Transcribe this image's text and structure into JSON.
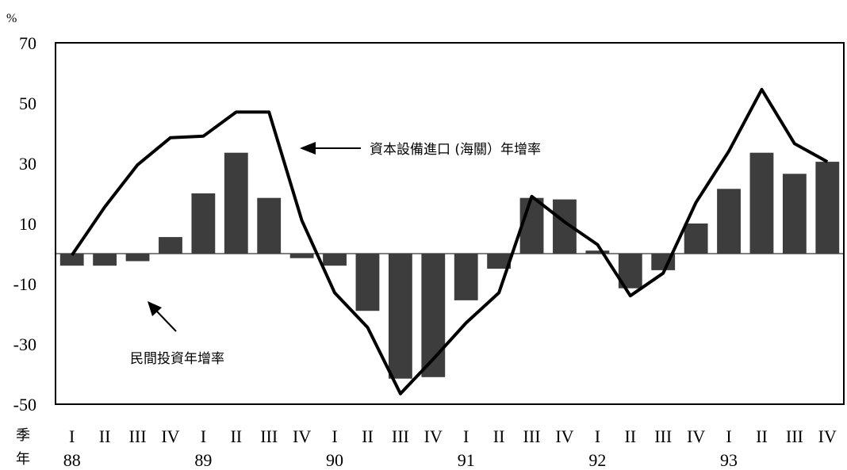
{
  "chart_data": {
    "type": "bar",
    "unit_label": "%",
    "ylim": [
      -50,
      70
    ],
    "y_ticks": [
      "70",
      "50",
      "30",
      "10",
      "-10",
      "-30",
      "-50"
    ],
    "quarter_row_label": "季",
    "year_row_label": "年",
    "quarters": [
      "I",
      "II",
      "III",
      "IV",
      "I",
      "II",
      "III",
      "IV",
      "I",
      "II",
      "III",
      "IV",
      "I",
      "II",
      "III",
      "IV",
      "I",
      "II",
      "III",
      "IV",
      "I",
      "II",
      "III",
      "IV"
    ],
    "years": [
      "88",
      "89",
      "90",
      "91",
      "92",
      "93"
    ],
    "series": [
      {
        "name": "民間投資年增率",
        "type": "bar",
        "values": [
          -4,
          -4,
          -2.5,
          5.5,
          20,
          33.5,
          18.5,
          -1.5,
          -4,
          -19,
          -41.5,
          -41,
          -15.5,
          -5,
          18.5,
          18,
          1,
          -11.5,
          -5.5,
          10,
          21.5,
          33.5,
          26.5,
          30.5
        ]
      },
      {
        "name": "資本設備進口(海關）年增率",
        "type": "line",
        "values": [
          -0.5,
          15.5,
          29.5,
          38.5,
          39,
          47,
          47,
          11,
          -13,
          -24.5,
          -46.5,
          -35,
          -23,
          -13,
          19,
          10.5,
          3,
          -14,
          -6.5,
          17,
          34,
          54.5,
          36.5,
          30.5
        ]
      }
    ]
  },
  "annotations": {
    "bar_label": "民間投資年增率",
    "line_label": "資本設備進口 (海關）年增率"
  },
  "colors": {
    "bar_fill": "#3d3d3d",
    "line": "#000000"
  }
}
